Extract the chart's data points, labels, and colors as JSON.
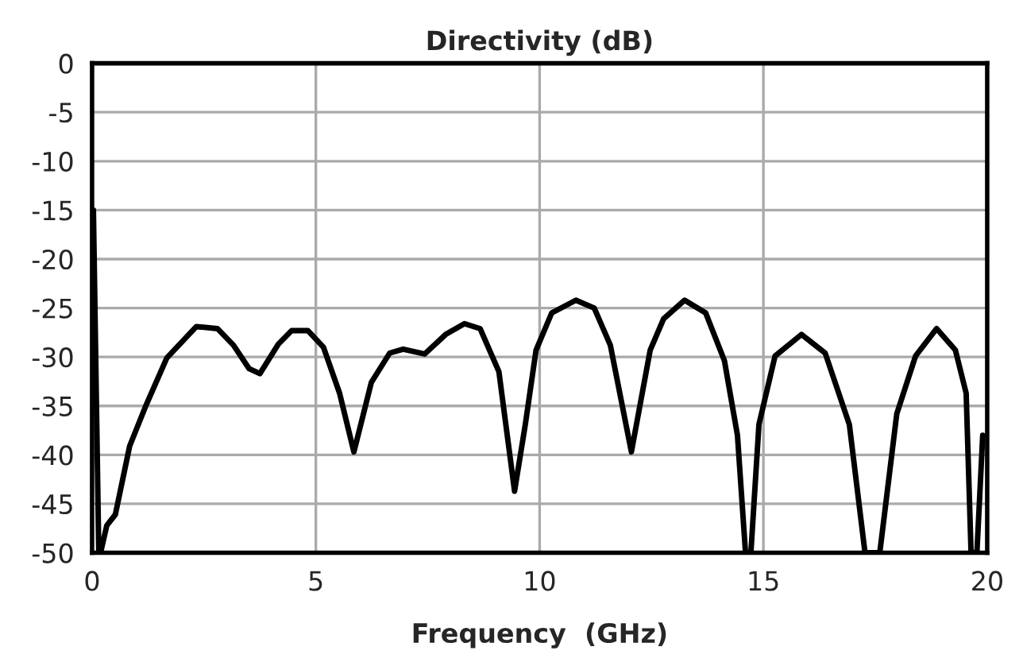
{
  "chart_data": {
    "type": "line",
    "title": "Directivity (dB)",
    "xlabel": "Frequency  (GHz)",
    "xlim": [
      0,
      20
    ],
    "xticks": [
      0,
      5,
      10,
      15,
      20
    ],
    "ylim": [
      -50,
      0
    ],
    "yticks": [
      -50,
      -45,
      -40,
      -35,
      -30,
      -25,
      -20,
      -15,
      -10,
      -5,
      0
    ],
    "grid": true,
    "marker": "none",
    "line_style": "solid",
    "series": [
      {
        "color": "#000000",
        "x": [
          0.03,
          0.15,
          0.19,
          0.33,
          0.52,
          0.84,
          1.2,
          1.67,
          2.33,
          2.8,
          3.16,
          3.51,
          3.75,
          4.16,
          4.46,
          4.82,
          5.17,
          5.53,
          5.85,
          6.24,
          6.65,
          6.95,
          7.43,
          7.9,
          8.32,
          8.67,
          9.09,
          9.44,
          9.68,
          9.92,
          10.27,
          10.81,
          11.22,
          11.58,
          12.05,
          12.47,
          12.77,
          13.24,
          13.71,
          14.13,
          14.42,
          14.6,
          14.72,
          14.9,
          15.26,
          15.85,
          16.38,
          16.92,
          17.27,
          17.6,
          17.98,
          18.4,
          18.87,
          19.29,
          19.53,
          19.64,
          19.77,
          19.9
        ],
        "values": [
          -15,
          -50,
          -50,
          -47.2,
          -46.1,
          -39.1,
          -35,
          -30.1,
          -26.9,
          -27.1,
          -28.8,
          -31.2,
          -31.7,
          -28.7,
          -27.3,
          -27.3,
          -29,
          -33.7,
          -39.7,
          -32.6,
          -29.6,
          -29.2,
          -29.7,
          -27.7,
          -26.6,
          -27.1,
          -31.5,
          -43.7,
          -36.9,
          -29.3,
          -25.5,
          -24.2,
          -25,
          -28.8,
          -39.7,
          -29.3,
          -26.1,
          -24.2,
          -25.5,
          -30.4,
          -38,
          -50,
          -50,
          -36.9,
          -29.9,
          -27.7,
          -29.6,
          -36.9,
          -50,
          -50,
          -35.8,
          -29.9,
          -27.1,
          -29.3,
          -33.7,
          -50,
          -50,
          -38
        ]
      }
    ]
  }
}
